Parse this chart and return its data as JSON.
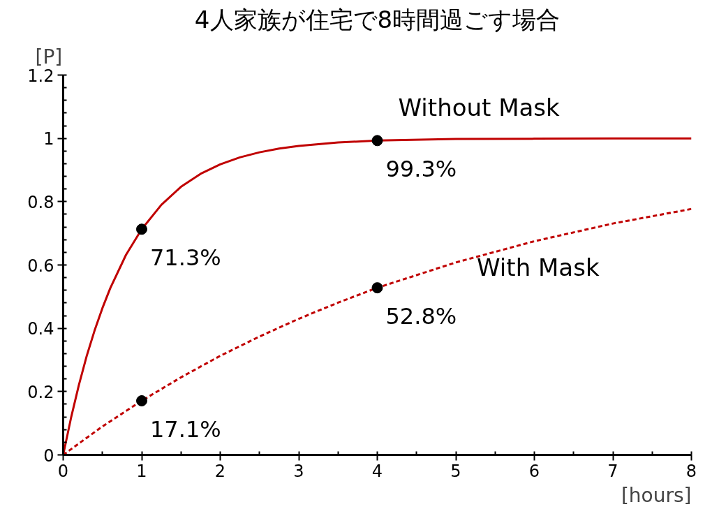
{
  "chart_data": {
    "type": "line",
    "title": "4人家族が住宅で8時間過ごす場合",
    "xlabel": "[hours]",
    "ylabel": "[P]",
    "xlim": [
      0,
      8
    ],
    "ylim": [
      0,
      1.2
    ],
    "xticks": [
      0,
      1,
      2,
      3,
      4,
      5,
      6,
      7,
      8
    ],
    "yticks": [
      0,
      {
        "value": 0.2,
        "label": "0.2"
      },
      {
        "value": 0.4,
        "label": "0.4"
      },
      {
        "value": 0.6,
        "label": "0.6"
      },
      {
        "value": 0.8,
        "label": "0.8"
      },
      1,
      {
        "value": 1.2,
        "label": "1.2"
      }
    ],
    "grid": false,
    "series": [
      {
        "name": "Without Mask",
        "color": "#c00000",
        "line_style": "solid",
        "x": [
          0,
          0.1,
          0.2,
          0.3,
          0.4,
          0.5,
          0.6,
          0.8,
          1,
          1.25,
          1.5,
          1.75,
          2,
          2.25,
          2.5,
          2.75,
          3,
          3.5,
          4,
          5,
          6,
          7,
          8
        ],
        "values": [
          0,
          0.117,
          0.221,
          0.313,
          0.393,
          0.464,
          0.527,
          0.632,
          0.713,
          0.79,
          0.847,
          0.888,
          0.918,
          0.94,
          0.956,
          0.968,
          0.976,
          0.987,
          0.993,
          0.998,
          0.999,
          1.0,
          1.0
        ]
      },
      {
        "name": "With Mask",
        "color": "#c00000",
        "line_style": "dashed",
        "x": [
          0,
          0.5,
          1,
          1.5,
          2,
          2.5,
          3,
          3.5,
          4,
          5,
          6,
          7,
          8
        ],
        "values": [
          0,
          0.09,
          0.171,
          0.245,
          0.313,
          0.374,
          0.43,
          0.481,
          0.528,
          0.608,
          0.675,
          0.731,
          0.777
        ]
      },
      {
        "type": "scatter",
        "marker": "circle",
        "color": "#000000",
        "x": [
          1,
          4,
          1,
          4
        ],
        "values": [
          0.713,
          0.993,
          0.171,
          0.528
        ],
        "value_labels": [
          "71.3%",
          "99.3%",
          "17.1%",
          "52.8%"
        ]
      }
    ]
  }
}
